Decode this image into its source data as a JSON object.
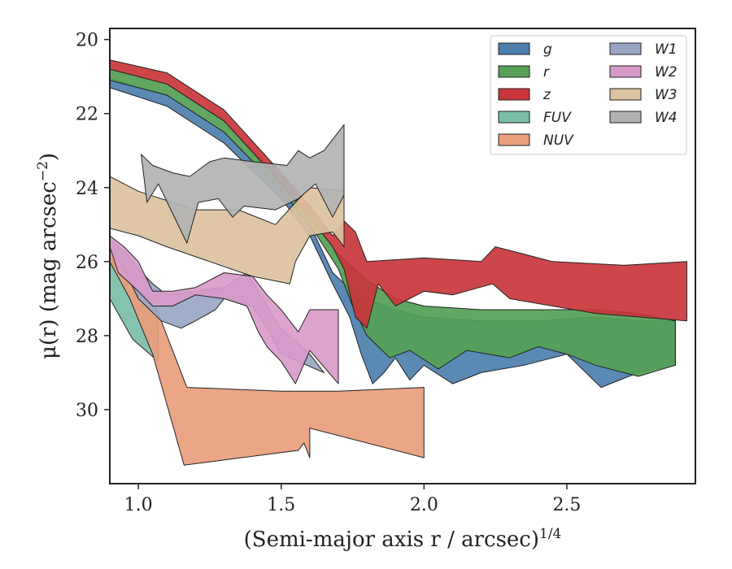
{
  "chart_data": {
    "type": "area",
    "xlabel": "(Semi-major axis r / arcsec)",
    "xlabel_exponent": "1/4",
    "ylabel": "μ(r) (mag arcsec",
    "ylabel_exponent": "−2",
    "ylabel_tail": ")",
    "xlim": [
      0.9,
      2.95
    ],
    "ylim": [
      32.0,
      19.7
    ],
    "y_inverted": true,
    "xticks": [
      1.0,
      1.5,
      2.0,
      2.5
    ],
    "xtick_labels": [
      "1.0",
      "1.5",
      "2.0",
      "2.5"
    ],
    "yticks": [
      20,
      22,
      24,
      26,
      28,
      30
    ],
    "ytick_labels": [
      "20",
      "22",
      "24",
      "26",
      "28",
      "30"
    ],
    "grid": false,
    "legend_position": "top-right",
    "legend_columns": 2,
    "series": [
      {
        "name": "g",
        "color": "#4c7fae",
        "upper": [
          [
            0.9,
            21.05
          ],
          [
            1.1,
            21.5
          ],
          [
            1.3,
            22.5
          ],
          [
            1.5,
            24.0
          ],
          [
            1.6,
            25.0
          ],
          [
            1.68,
            26.3
          ],
          [
            1.75,
            26.8
          ],
          [
            1.8,
            27.0
          ],
          [
            1.9,
            27.3
          ],
          [
            2.0,
            27.5
          ],
          [
            2.2,
            27.6
          ],
          [
            2.4,
            27.6
          ],
          [
            2.6,
            27.5
          ],
          [
            2.75,
            27.6
          ],
          [
            2.88,
            27.6
          ]
        ],
        "lower": [
          [
            2.88,
            28.8
          ],
          [
            2.75,
            29.0
          ],
          [
            2.62,
            29.4
          ],
          [
            2.5,
            28.5
          ],
          [
            2.35,
            28.8
          ],
          [
            2.2,
            29.0
          ],
          [
            2.1,
            29.3
          ],
          [
            2.0,
            28.8
          ],
          [
            1.95,
            29.2
          ],
          [
            1.9,
            28.6
          ],
          [
            1.86,
            29.0
          ],
          [
            1.82,
            29.3
          ],
          [
            1.78,
            28.5
          ],
          [
            1.74,
            27.5
          ],
          [
            1.68,
            26.6
          ],
          [
            1.6,
            25.3
          ],
          [
            1.5,
            24.3
          ],
          [
            1.3,
            22.8
          ],
          [
            1.1,
            21.8
          ],
          [
            0.9,
            21.3
          ]
        ]
      },
      {
        "name": "r",
        "color": "#55a054",
        "upper": [
          [
            0.9,
            20.8
          ],
          [
            1.1,
            21.2
          ],
          [
            1.3,
            22.2
          ],
          [
            1.5,
            23.8
          ],
          [
            1.6,
            24.8
          ],
          [
            1.7,
            25.8
          ],
          [
            1.8,
            26.5
          ],
          [
            1.9,
            27.0
          ],
          [
            2.0,
            27.2
          ],
          [
            2.2,
            27.3
          ],
          [
            2.4,
            27.3
          ],
          [
            2.6,
            27.3
          ],
          [
            2.75,
            27.4
          ],
          [
            2.88,
            27.6
          ]
        ],
        "lower": [
          [
            2.88,
            28.8
          ],
          [
            2.75,
            29.1
          ],
          [
            2.6,
            28.8
          ],
          [
            2.5,
            28.5
          ],
          [
            2.4,
            28.3
          ],
          [
            2.3,
            28.6
          ],
          [
            2.15,
            28.4
          ],
          [
            2.05,
            28.9
          ],
          [
            1.95,
            28.4
          ],
          [
            1.88,
            28.6
          ],
          [
            1.8,
            28.0
          ],
          [
            1.75,
            27.2
          ],
          [
            1.7,
            26.2
          ],
          [
            1.6,
            25.0
          ],
          [
            1.5,
            24.1
          ],
          [
            1.3,
            22.5
          ],
          [
            1.1,
            21.5
          ],
          [
            0.9,
            21.1
          ]
        ]
      },
      {
        "name": "z",
        "color": "#c9363a",
        "upper": [
          [
            0.9,
            20.55
          ],
          [
            1.1,
            20.9
          ],
          [
            1.3,
            21.9
          ],
          [
            1.5,
            23.6
          ],
          [
            1.6,
            24.5
          ],
          [
            1.68,
            25.3
          ],
          [
            1.72,
            24.9
          ],
          [
            1.76,
            25.2
          ],
          [
            1.8,
            26.0
          ],
          [
            2.0,
            25.9
          ],
          [
            2.2,
            26.0
          ],
          [
            2.25,
            25.6
          ],
          [
            2.45,
            26.0
          ],
          [
            2.7,
            26.1
          ],
          [
            2.92,
            26.0
          ]
        ],
        "lower": [
          [
            2.92,
            27.6
          ],
          [
            2.6,
            27.4
          ],
          [
            2.45,
            27.2
          ],
          [
            2.3,
            27.0
          ],
          [
            2.24,
            26.6
          ],
          [
            2.1,
            26.9
          ],
          [
            2.0,
            26.8
          ],
          [
            1.9,
            27.2
          ],
          [
            1.84,
            26.6
          ],
          [
            1.8,
            27.8
          ],
          [
            1.76,
            27.5
          ],
          [
            1.72,
            26.2
          ],
          [
            1.68,
            25.6
          ],
          [
            1.6,
            24.8
          ],
          [
            1.5,
            23.9
          ],
          [
            1.3,
            22.2
          ],
          [
            1.1,
            21.2
          ],
          [
            0.9,
            20.8
          ]
        ]
      },
      {
        "name": "FUV",
        "color": "#7bbea7",
        "upper": [
          [
            0.9,
            25.9
          ],
          [
            0.96,
            26.5
          ],
          [
            1.02,
            27.0
          ],
          [
            1.07,
            27.4
          ],
          [
            1.07,
            28.7
          ]
        ],
        "lower": [
          [
            1.07,
            28.7
          ],
          [
            0.98,
            28.1
          ],
          [
            0.9,
            27.0
          ]
        ]
      },
      {
        "name": "NUV",
        "color": "#e99e7d",
        "upper": [
          [
            0.9,
            25.6
          ],
          [
            0.98,
            26.2
          ],
          [
            1.05,
            27.0
          ],
          [
            1.1,
            28.0
          ],
          [
            1.17,
            29.4
          ],
          [
            1.5,
            29.5
          ],
          [
            1.7,
            29.5
          ],
          [
            2.0,
            29.4
          ]
        ],
        "lower": [
          [
            2.0,
            31.3
          ],
          [
            1.6,
            30.5
          ],
          [
            1.6,
            31.3
          ],
          [
            1.58,
            30.9
          ],
          [
            1.56,
            31.1
          ],
          [
            1.16,
            31.5
          ],
          [
            1.05,
            28.5
          ],
          [
            0.97,
            27.0
          ],
          [
            0.9,
            26.0
          ]
        ]
      },
      {
        "name": "W1",
        "color": "#9aa6c6",
        "upper": [
          [
            0.9,
            25.4
          ],
          [
            0.96,
            25.8
          ],
          [
            1.0,
            26.2
          ],
          [
            1.05,
            26.6
          ],
          [
            1.1,
            26.9
          ],
          [
            1.2,
            26.8
          ],
          [
            1.3,
            26.7
          ],
          [
            1.38,
            26.3
          ],
          [
            1.45,
            27.2
          ],
          [
            1.5,
            27.8
          ],
          [
            1.6,
            28.5
          ],
          [
            1.65,
            29.0
          ]
        ],
        "lower": [
          [
            1.65,
            29.0
          ],
          [
            1.5,
            28.5
          ],
          [
            1.45,
            27.8
          ],
          [
            1.4,
            27.2
          ],
          [
            1.3,
            27.0
          ],
          [
            1.27,
            27.3
          ],
          [
            1.2,
            27.6
          ],
          [
            1.15,
            27.8
          ],
          [
            1.08,
            27.6
          ],
          [
            1.0,
            27.0
          ],
          [
            0.95,
            26.2
          ],
          [
            0.9,
            25.6
          ]
        ]
      },
      {
        "name": "W2",
        "color": "#d89bc9",
        "upper": [
          [
            0.9,
            25.3
          ],
          [
            0.95,
            25.6
          ],
          [
            1.0,
            26.0
          ],
          [
            1.05,
            26.8
          ],
          [
            1.12,
            26.8
          ],
          [
            1.2,
            26.7
          ],
          [
            1.3,
            26.3
          ],
          [
            1.4,
            26.4
          ],
          [
            1.45,
            26.9
          ],
          [
            1.5,
            27.3
          ],
          [
            1.56,
            27.9
          ],
          [
            1.6,
            27.3
          ],
          [
            1.7,
            27.3
          ]
        ],
        "lower": [
          [
            1.7,
            29.3
          ],
          [
            1.6,
            28.4
          ],
          [
            1.55,
            29.3
          ],
          [
            1.5,
            28.7
          ],
          [
            1.45,
            28.3
          ],
          [
            1.42,
            27.9
          ],
          [
            1.38,
            27.2
          ],
          [
            1.3,
            27.0
          ],
          [
            1.2,
            26.9
          ],
          [
            1.12,
            27.2
          ],
          [
            1.05,
            27.2
          ],
          [
            1.0,
            26.8
          ],
          [
            0.93,
            26.3
          ],
          [
            0.9,
            25.6
          ]
        ]
      },
      {
        "name": "W3",
        "color": "#dcc29e",
        "upper": [
          [
            0.9,
            23.7
          ],
          [
            1.0,
            24.1
          ],
          [
            1.2,
            24.6
          ],
          [
            1.35,
            24.6
          ],
          [
            1.48,
            25.0
          ],
          [
            1.55,
            24.4
          ],
          [
            1.6,
            24.0
          ],
          [
            1.72,
            24.1
          ]
        ],
        "lower": [
          [
            1.72,
            25.6
          ],
          [
            1.68,
            25.2
          ],
          [
            1.6,
            25.3
          ],
          [
            1.55,
            26.0
          ],
          [
            1.53,
            26.6
          ],
          [
            1.4,
            26.4
          ],
          [
            1.25,
            26.0
          ],
          [
            1.1,
            25.6
          ],
          [
            1.0,
            25.3
          ],
          [
            0.9,
            25.1
          ]
        ]
      },
      {
        "name": "W4",
        "color": "#b3b3b3",
        "upper": [
          [
            1.01,
            23.1
          ],
          [
            1.05,
            23.4
          ],
          [
            1.12,
            23.6
          ],
          [
            1.18,
            23.7
          ],
          [
            1.25,
            23.3
          ],
          [
            1.3,
            23.2
          ],
          [
            1.4,
            23.3
          ],
          [
            1.52,
            23.4
          ],
          [
            1.56,
            23.0
          ],
          [
            1.6,
            23.2
          ],
          [
            1.65,
            23.0
          ],
          [
            1.72,
            22.3
          ]
        ],
        "lower": [
          [
            1.72,
            24.2
          ],
          [
            1.68,
            24.8
          ],
          [
            1.62,
            23.9
          ],
          [
            1.56,
            24.3
          ],
          [
            1.48,
            24.6
          ],
          [
            1.37,
            24.5
          ],
          [
            1.33,
            24.8
          ],
          [
            1.28,
            24.3
          ],
          [
            1.21,
            24.4
          ],
          [
            1.17,
            25.5
          ],
          [
            1.07,
            23.9
          ],
          [
            1.03,
            24.4
          ]
        ]
      }
    ]
  }
}
